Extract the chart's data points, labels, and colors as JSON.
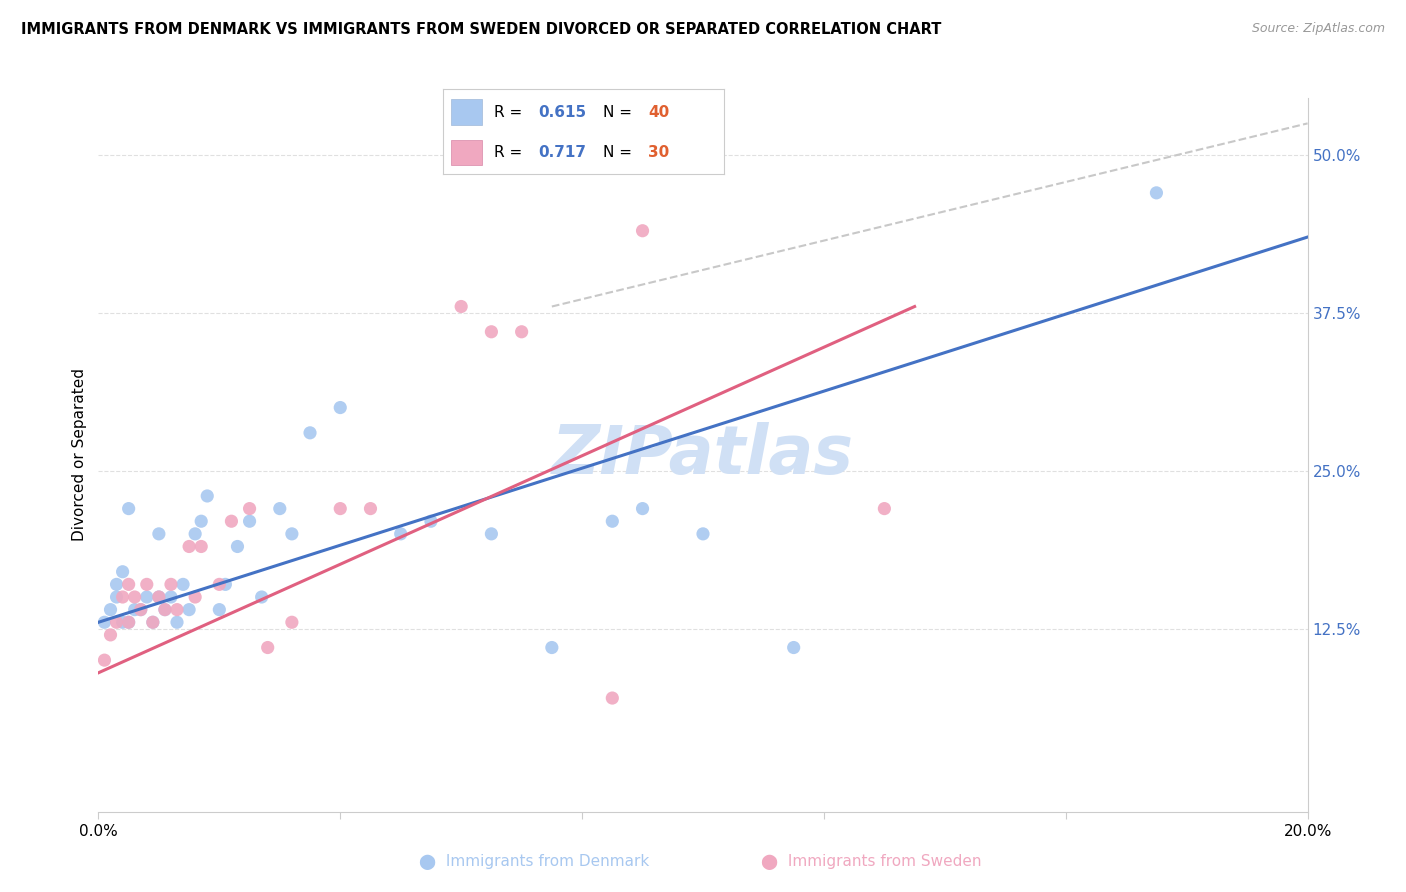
{
  "title": "IMMIGRANTS FROM DENMARK VS IMMIGRANTS FROM SWEDEN DIVORCED OR SEPARATED CORRELATION CHART",
  "source": "Source: ZipAtlas.com",
  "ylabel": "Divorced or Separated",
  "ytick_labels": [
    "12.5%",
    "25.0%",
    "37.5%",
    "50.0%"
  ],
  "ytick_values": [
    0.125,
    0.25,
    0.375,
    0.5
  ],
  "xlim": [
    0.0,
    0.2
  ],
  "ylim": [
    -0.02,
    0.545
  ],
  "color_denmark": "#a8c8f0",
  "color_sweden": "#f0a8c0",
  "color_line_denmark": "#4472c4",
  "color_line_sweden": "#e06080",
  "color_dashed": "#c8c8c8",
  "watermark_color": "#d0e0f5",
  "denmark_scatter_x": [
    0.001,
    0.002,
    0.003,
    0.003,
    0.004,
    0.004,
    0.005,
    0.005,
    0.006,
    0.007,
    0.008,
    0.009,
    0.01,
    0.01,
    0.011,
    0.012,
    0.013,
    0.014,
    0.015,
    0.016,
    0.017,
    0.018,
    0.02,
    0.021,
    0.023,
    0.025,
    0.027,
    0.03,
    0.032,
    0.035,
    0.04,
    0.05,
    0.055,
    0.065,
    0.075,
    0.085,
    0.09,
    0.1,
    0.115,
    0.175
  ],
  "denmark_scatter_y": [
    0.13,
    0.14,
    0.15,
    0.16,
    0.13,
    0.17,
    0.13,
    0.22,
    0.14,
    0.14,
    0.15,
    0.13,
    0.15,
    0.2,
    0.14,
    0.15,
    0.13,
    0.16,
    0.14,
    0.2,
    0.21,
    0.23,
    0.14,
    0.16,
    0.19,
    0.21,
    0.15,
    0.22,
    0.2,
    0.28,
    0.3,
    0.2,
    0.21,
    0.2,
    0.11,
    0.21,
    0.22,
    0.2,
    0.11,
    0.47
  ],
  "sweden_scatter_x": [
    0.001,
    0.002,
    0.003,
    0.004,
    0.005,
    0.005,
    0.006,
    0.007,
    0.008,
    0.009,
    0.01,
    0.011,
    0.012,
    0.013,
    0.015,
    0.016,
    0.017,
    0.02,
    0.022,
    0.025,
    0.028,
    0.032,
    0.04,
    0.045,
    0.06,
    0.065,
    0.07,
    0.085,
    0.09,
    0.13
  ],
  "sweden_scatter_y": [
    0.1,
    0.12,
    0.13,
    0.15,
    0.13,
    0.16,
    0.15,
    0.14,
    0.16,
    0.13,
    0.15,
    0.14,
    0.16,
    0.14,
    0.19,
    0.15,
    0.19,
    0.16,
    0.21,
    0.22,
    0.11,
    0.13,
    0.22,
    0.22,
    0.38,
    0.36,
    0.36,
    0.07,
    0.44,
    0.22
  ],
  "denmark_line_x": [
    0.0,
    0.2
  ],
  "denmark_line_y": [
    0.13,
    0.435
  ],
  "sweden_line_x": [
    0.0,
    0.135
  ],
  "sweden_line_y": [
    0.09,
    0.38
  ],
  "dashed_line_x": [
    0.075,
    0.2
  ],
  "dashed_line_y": [
    0.38,
    0.525
  ]
}
